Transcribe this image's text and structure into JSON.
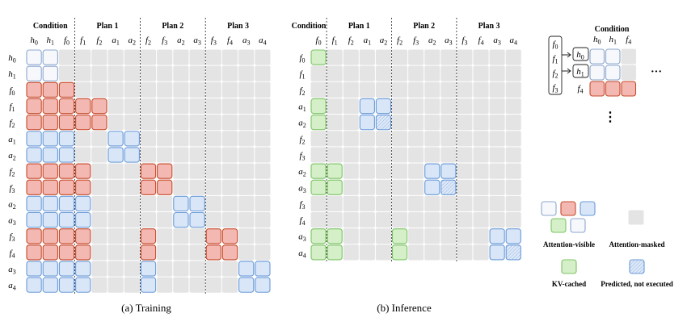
{
  "training": {
    "caption": "(a) Training",
    "groups": [
      "Condition",
      "Plan 1",
      "Plan 2",
      "Plan 3"
    ],
    "columns": [
      [
        "h",
        "0"
      ],
      [
        "h",
        "1"
      ],
      [
        "f",
        "0"
      ],
      [
        "f",
        "1"
      ],
      [
        "f",
        "2"
      ],
      [
        "a",
        "1"
      ],
      [
        "a",
        "2"
      ],
      [
        "f",
        "2"
      ],
      [
        "f",
        "3"
      ],
      [
        "a",
        "2"
      ],
      [
        "a",
        "3"
      ],
      [
        "f",
        "3"
      ],
      [
        "f",
        "4"
      ],
      [
        "a",
        "3"
      ],
      [
        "a",
        "4"
      ]
    ],
    "rows": [
      [
        "h",
        "0"
      ],
      [
        "h",
        "1"
      ],
      [
        "f",
        "0"
      ],
      [
        "f",
        "1"
      ],
      [
        "f",
        "2"
      ],
      [
        "a",
        "1"
      ],
      [
        "a",
        "2"
      ],
      [
        "f",
        "2"
      ],
      [
        "f",
        "3"
      ],
      [
        "a",
        "2"
      ],
      [
        "a",
        "3"
      ],
      [
        "f",
        "3"
      ],
      [
        "f",
        "4"
      ],
      [
        "a",
        "3"
      ],
      [
        "a",
        "4"
      ]
    ]
  },
  "inference": {
    "caption": "(b) Inference",
    "groups": [
      "Condition",
      "Plan 1",
      "Plan 2",
      "Plan 3"
    ],
    "columns": [
      [
        "f",
        "0"
      ],
      [
        "f",
        "1"
      ],
      [
        "f",
        "2"
      ],
      [
        "a",
        "1"
      ],
      [
        "a",
        "2"
      ],
      [
        "f",
        "2"
      ],
      [
        "f",
        "3"
      ],
      [
        "a",
        "2"
      ],
      [
        "a",
        "3"
      ],
      [
        "f",
        "3"
      ],
      [
        "f",
        "4"
      ],
      [
        "a",
        "3"
      ],
      [
        "a",
        "4"
      ]
    ],
    "rows": [
      [
        "f",
        "0"
      ],
      [
        "f",
        "1"
      ],
      [
        "f",
        "2"
      ],
      [
        "a",
        "1"
      ],
      [
        "a",
        "2"
      ],
      [
        "f",
        "2"
      ],
      [
        "f",
        "3"
      ],
      [
        "a",
        "2"
      ],
      [
        "a",
        "3"
      ],
      [
        "f",
        "3"
      ],
      [
        "f",
        "4"
      ],
      [
        "a",
        "3"
      ],
      [
        "a",
        "4"
      ]
    ]
  },
  "condition_inset": {
    "title": "Condition",
    "stack": [
      [
        "f",
        "0"
      ],
      [
        "f",
        "1"
      ],
      [
        "f",
        "2"
      ],
      [
        "f",
        "3"
      ]
    ],
    "columns": [
      [
        "h",
        "0"
      ],
      [
        "h",
        "1"
      ],
      [
        "f",
        "4"
      ]
    ],
    "rows": [
      [
        "h",
        "0"
      ],
      [
        "h",
        "1"
      ],
      [
        "f",
        "4"
      ]
    ],
    "ellipsis_h": "···",
    "ellipsis_v": "⋮"
  },
  "legend": {
    "attention_visible": "Attention-visible",
    "attention_masked": "Attention-masked",
    "kv_cached": "KV-cached",
    "predicted": "Predicted, not executed"
  },
  "colors": {
    "masked": "#e4e4e4",
    "white_fill": "#f7f8fb",
    "white_stroke": "#8da7cf",
    "red_fill": "#f4b8b3",
    "red_stroke": "#c54a2a",
    "blue_fill": "#d8e6f8",
    "blue_stroke": "#6a9ad8",
    "green_fill": "#d5efc8",
    "green_stroke": "#7cc465"
  }
}
